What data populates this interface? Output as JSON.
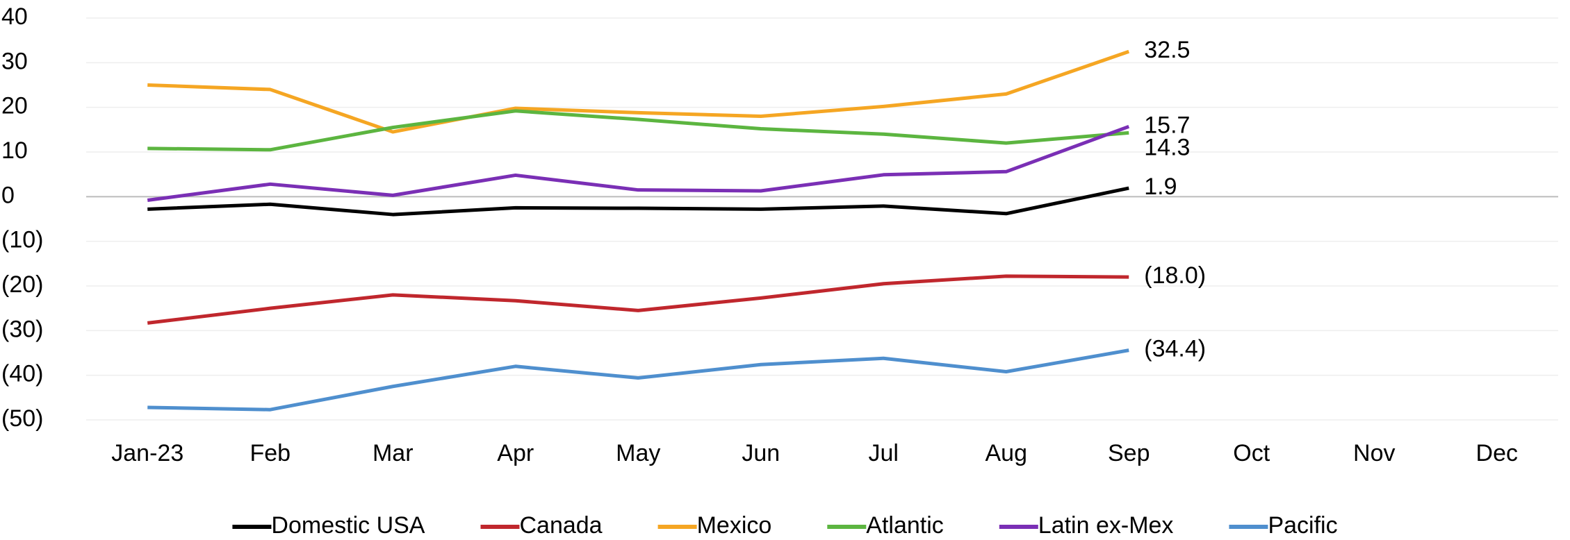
{
  "chart_data": {
    "type": "line",
    "categories": [
      "Jan-23",
      "Feb",
      "Mar",
      "Apr",
      "May",
      "Jun",
      "Jul",
      "Aug",
      "Sep",
      "Oct",
      "Nov",
      "Dec"
    ],
    "ylim": [
      -50,
      40
    ],
    "yticks": [
      {
        "value": -50,
        "label": "(50)"
      },
      {
        "value": -40,
        "label": "(40)"
      },
      {
        "value": -30,
        "label": "(30)"
      },
      {
        "value": -20,
        "label": "(20)"
      },
      {
        "value": -10,
        "label": "(10)"
      },
      0,
      10,
      20,
      30,
      40
    ],
    "grid": true,
    "negative_color": "#ff0000",
    "legend": "bottom",
    "series": [
      {
        "name": "Domestic USA",
        "color": "#000000",
        "values": [
          -2.8,
          -1.7,
          -4.0,
          -2.5,
          -2.6,
          -2.8,
          -2.1,
          -3.8,
          1.9,
          null,
          null,
          null
        ],
        "value_labels": [
          null,
          null,
          null,
          null,
          null,
          null,
          null,
          null,
          "1.9",
          null,
          null,
          null
        ]
      },
      {
        "name": "Canada",
        "color": "#c0272d",
        "values": [
          -28.3,
          -25.0,
          -22.0,
          -23.3,
          -25.5,
          -22.7,
          -19.5,
          -17.8,
          -18.0,
          null,
          null,
          null
        ],
        "value_labels": [
          null,
          null,
          null,
          null,
          null,
          null,
          null,
          null,
          "(18.0)",
          null,
          null,
          null
        ]
      },
      {
        "name": "Mexico",
        "color": "#f5a623",
        "values": [
          25.0,
          24.0,
          14.5,
          19.8,
          18.8,
          18.0,
          20.2,
          23.0,
          32.5,
          null,
          null,
          null
        ],
        "value_labels": [
          null,
          null,
          null,
          null,
          null,
          null,
          null,
          null,
          "32.5",
          null,
          null,
          null
        ]
      },
      {
        "name": "Atlantic",
        "color": "#5cb540",
        "values": [
          10.8,
          10.5,
          15.5,
          19.2,
          17.3,
          15.2,
          14.0,
          12.0,
          14.3,
          null,
          null,
          null
        ],
        "value_labels": [
          null,
          null,
          null,
          null,
          null,
          null,
          null,
          null,
          "14.3",
          null,
          null,
          null
        ]
      },
      {
        "name": "Latin ex-Mex",
        "color": "#7a2fb5",
        "values": [
          -0.8,
          2.8,
          0.3,
          4.8,
          1.5,
          1.3,
          4.9,
          5.6,
          15.7,
          null,
          null,
          null
        ],
        "value_labels": [
          null,
          null,
          null,
          null,
          null,
          null,
          null,
          null,
          "15.7",
          null,
          null,
          null
        ]
      },
      {
        "name": "Pacific",
        "color": "#4f8fce",
        "values": [
          -47.2,
          -47.7,
          -42.5,
          -38.0,
          -40.6,
          -37.6,
          -36.2,
          -39.2,
          -34.4,
          null,
          null,
          null
        ],
        "value_labels": [
          null,
          null,
          null,
          null,
          null,
          null,
          null,
          null,
          "(34.4)",
          null,
          null,
          null
        ]
      }
    ]
  }
}
